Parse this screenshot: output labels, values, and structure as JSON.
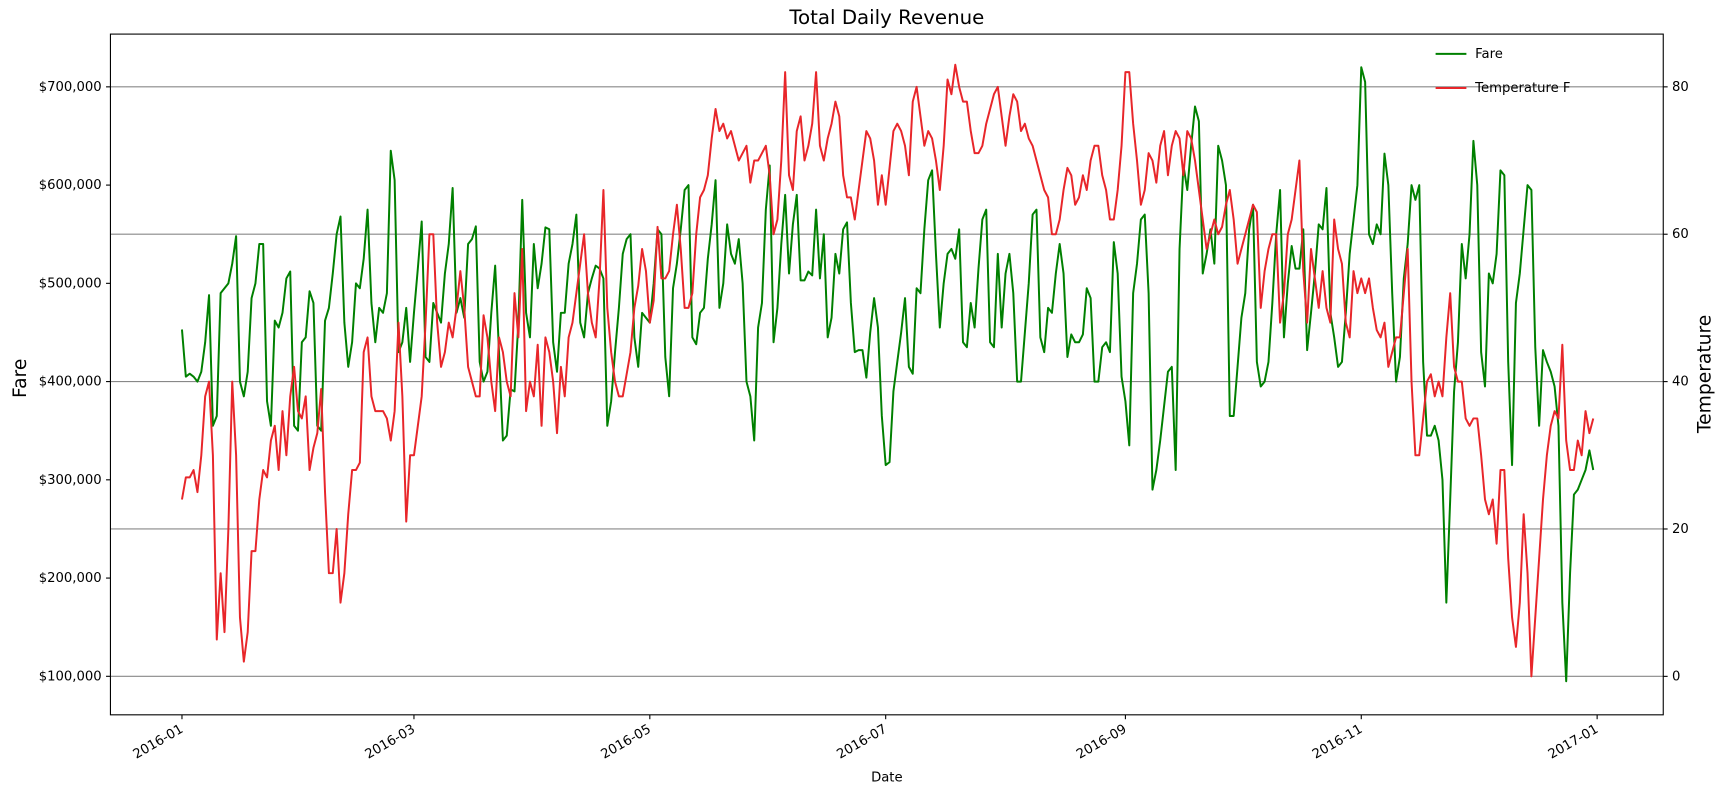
{
  "chart_data": {
    "type": "line",
    "title": "Total Daily Revenue",
    "xlabel": "Date",
    "ylabel": "Fare",
    "y2label": "Temperature",
    "xlim": [
      -18.5,
      383.1
    ],
    "xticks": [
      {
        "value": 0,
        "label": "2016-01"
      },
      {
        "value": 60,
        "label": "2016-03"
      },
      {
        "value": 121,
        "label": "2016-05"
      },
      {
        "value": 182,
        "label": "2016-07"
      },
      {
        "value": 244,
        "label": "2016-09"
      },
      {
        "value": 305,
        "label": "2016-11"
      },
      {
        "value": 366,
        "label": "2017-01"
      }
    ],
    "ylim": [
      60800,
      753700
    ],
    "yticks": [
      {
        "value": 100000,
        "label": "$100,000"
      },
      {
        "value": 200000,
        "label": "$200,000"
      },
      {
        "value": 300000,
        "label": "$300,000"
      },
      {
        "value": 400000,
        "label": "$400,000"
      },
      {
        "value": 500000,
        "label": "$500,000"
      },
      {
        "value": 600000,
        "label": "$600,000"
      },
      {
        "value": 700000,
        "label": "$700,000"
      }
    ],
    "y2lim": [
      -5.22,
      87.16
    ],
    "y2ticks": [
      0,
      20,
      40,
      60,
      80
    ],
    "grid": "y2",
    "legend": "upper right",
    "x": [
      0,
      1,
      2,
      3,
      4,
      5,
      6,
      7,
      8,
      9,
      10,
      11,
      12,
      13,
      14,
      15,
      16,
      17,
      18,
      19,
      20,
      21,
      22,
      23,
      24,
      25,
      26,
      27,
      28,
      29,
      30,
      31,
      32,
      33,
      34,
      35,
      36,
      37,
      38,
      39,
      40,
      41,
      42,
      43,
      44,
      45,
      46,
      47,
      48,
      49,
      50,
      51,
      52,
      53,
      54,
      55,
      56,
      57,
      58,
      59,
      60,
      61,
      62,
      63,
      64,
      65,
      66,
      67,
      68,
      69,
      70,
      71,
      72,
      73,
      74,
      75,
      76,
      77,
      78,
      79,
      80,
      81,
      82,
      83,
      84,
      85,
      86,
      87,
      88,
      89,
      90,
      91,
      92,
      93,
      94,
      95,
      96,
      97,
      98,
      99,
      100,
      101,
      102,
      103,
      104,
      105,
      106,
      107,
      108,
      109,
      110,
      111,
      112,
      113,
      114,
      115,
      116,
      117,
      118,
      119,
      120,
      121,
      122,
      123,
      124,
      125,
      126,
      127,
      128,
      129,
      130,
      131,
      132,
      133,
      134,
      135,
      136,
      137,
      138,
      139,
      140,
      141,
      142,
      143,
      144,
      145,
      146,
      147,
      148,
      149,
      150,
      151,
      152,
      153,
      154,
      155,
      156,
      157,
      158,
      159,
      160,
      161,
      162,
      163,
      164,
      165,
      166,
      167,
      168,
      169,
      170,
      171,
      172,
      173,
      174,
      175,
      176,
      177,
      178,
      179,
      180,
      181,
      182,
      183,
      184,
      185,
      186,
      187,
      188,
      189,
      190,
      191,
      192,
      193,
      194,
      195,
      196,
      197,
      198,
      199,
      200,
      201,
      202,
      203,
      204,
      205,
      206,
      207,
      208,
      209,
      210,
      211,
      212,
      213,
      214,
      215,
      216,
      217,
      218,
      219,
      220,
      221,
      222,
      223,
      224,
      225,
      226,
      227,
      228,
      229,
      230,
      231,
      232,
      233,
      234,
      235,
      236,
      237,
      238,
      239,
      240,
      241,
      242,
      243,
      244,
      245,
      246,
      247,
      248,
      249,
      250,
      251,
      252,
      253,
      254,
      255,
      256,
      257,
      258,
      259,
      260,
      261,
      262,
      263,
      264,
      265,
      266,
      267,
      268,
      269,
      270,
      271,
      272,
      273,
      274,
      275,
      276,
      277,
      278,
      279,
      280,
      281,
      282,
      283,
      284,
      285,
      286,
      287,
      288,
      289,
      290,
      291,
      292,
      293,
      294,
      295,
      296,
      297,
      298,
      299,
      300,
      301,
      302,
      303,
      304,
      305,
      306,
      307,
      308,
      309,
      310,
      311,
      312,
      313,
      314,
      315,
      316,
      317,
      318,
      319,
      320,
      321,
      322,
      323,
      324,
      325,
      326,
      327,
      328,
      329,
      330,
      331,
      332,
      333,
      334,
      335,
      336,
      337,
      338,
      339,
      340,
      341,
      342,
      343,
      344,
      345,
      346,
      347,
      348,
      349,
      350,
      351,
      352,
      353,
      354,
      355,
      356,
      357,
      358,
      359,
      360,
      361,
      362,
      363,
      364,
      365
    ],
    "series": [
      {
        "name": "Fare",
        "color": "#008000",
        "axis": "y",
        "values": [
          453000,
          405000,
          408000,
          405000,
          400000,
          410000,
          440000,
          488000,
          355000,
          365000,
          490000,
          495000,
          500000,
          520000,
          548000,
          400000,
          385000,
          410000,
          485000,
          500000,
          540000,
          540000,
          380000,
          355000,
          462000,
          455000,
          470000,
          505000,
          512000,
          355000,
          350000,
          440000,
          445000,
          492000,
          480000,
          355000,
          350000,
          462000,
          475000,
          510000,
          550000,
          568000,
          460000,
          415000,
          440000,
          500000,
          495000,
          525000,
          575000,
          480000,
          440000,
          475000,
          470000,
          490000,
          635000,
          605000,
          430000,
          440000,
          475000,
          420000,
          470000,
          515000,
          563000,
          425000,
          420000,
          480000,
          470000,
          460000,
          510000,
          540000,
          597000,
          470000,
          485000,
          465000,
          540000,
          545000,
          558000,
          420000,
          400000,
          410000,
          470000,
          518000,
          430000,
          340000,
          345000,
          392000,
          390000,
          460000,
          585000,
          470000,
          445000,
          540000,
          495000,
          520000,
          557000,
          555000,
          440000,
          410000,
          470000,
          470000,
          520000,
          540000,
          570000,
          460000,
          445000,
          490000,
          505000,
          518000,
          515000,
          505000,
          355000,
          380000,
          430000,
          475000,
          530000,
          545000,
          550000,
          445000,
          415000,
          470000,
          465000,
          460000,
          500000,
          555000,
          550000,
          425000,
          385000,
          495000,
          520000,
          555000,
          595000,
          600000,
          445000,
          438000,
          470000,
          475000,
          525000,
          560000,
          605000,
          475000,
          500000,
          560000,
          530000,
          520000,
          545000,
          500000,
          400000,
          385000,
          340000,
          455000,
          480000,
          575000,
          620000,
          440000,
          475000,
          540000,
          590000,
          510000,
          560000,
          590000,
          503000,
          503000,
          512000,
          508000,
          575000,
          505000,
          550000,
          445000,
          465000,
          530000,
          510000,
          555000,
          562000,
          480000,
          430000,
          432000,
          432000,
          404000,
          450000,
          485000,
          455000,
          365000,
          315000,
          318000,
          390000,
          420000,
          450000,
          485000,
          415000,
          408000,
          495000,
          490000,
          555000,
          605000,
          615000,
          530000,
          455000,
          500000,
          530000,
          535000,
          525000,
          555000,
          440000,
          435000,
          480000,
          455000,
          515000,
          565000,
          575000,
          440000,
          435000,
          530000,
          455000,
          510000,
          530000,
          490000,
          400000,
          400000,
          450000,
          500000,
          570000,
          575000,
          445000,
          430000,
          475000,
          470000,
          510000,
          540000,
          510000,
          425000,
          448000,
          440000,
          440000,
          448000,
          495000,
          485000,
          400000,
          400000,
          435000,
          440000,
          430000,
          542000,
          510000,
          405000,
          380000,
          335000,
          490000,
          520000,
          565000,
          570000,
          490000,
          290000,
          310000,
          340000,
          375000,
          410000,
          415000,
          310000,
          535000,
          620000,
          595000,
          640000,
          680000,
          665000,
          510000,
          530000,
          555000,
          520000,
          640000,
          625000,
          600000,
          365000,
          365000,
          415000,
          465000,
          490000,
          555000,
          580000,
          420000,
          395000,
          400000,
          420000,
          480000,
          550000,
          595000,
          445000,
          500000,
          538000,
          515000,
          515000,
          555000,
          432000,
          470000,
          510000,
          560000,
          555000,
          597000,
          470000,
          445000,
          415000,
          420000,
          470000,
          530000,
          565000,
          600000,
          720000,
          705000,
          550000,
          540000,
          560000,
          550000,
          632000,
          600000,
          490000,
          400000,
          425000,
          505000,
          540000,
          600000,
          585000,
          600000,
          420000,
          345000,
          345000,
          355000,
          340000,
          300000,
          175000,
          280000,
          390000,
          440000,
          540000,
          505000,
          550000,
          645000,
          600000,
          430000,
          395000,
          510000,
          500000,
          530000,
          615000,
          610000,
          420000,
          315000,
          480000,
          510000,
          555000,
          600000,
          595000,
          435000,
          355000,
          432000,
          420000,
          410000,
          395000,
          355000,
          175000,
          95000,
          205000,
          285000,
          290000,
          300000,
          310000,
          330000,
          310000
        ]
      },
      {
        "name": "Temperature F",
        "color": "#e8262a",
        "axis": "y2",
        "values": [
          24,
          27,
          27,
          28,
          25,
          30,
          38,
          40,
          30,
          5,
          14,
          6,
          20,
          40,
          30,
          8,
          2,
          6,
          17,
          17,
          24,
          28,
          27,
          32,
          34,
          28,
          36,
          30,
          38,
          42,
          36,
          35,
          38,
          28,
          31,
          33,
          39,
          25,
          14,
          14,
          20,
          10,
          14,
          22,
          28,
          28,
          29,
          44,
          46,
          38,
          36,
          36,
          36,
          35,
          32,
          36,
          48,
          38,
          21,
          30,
          30,
          34,
          38,
          48,
          60,
          60,
          48,
          42,
          44,
          48,
          46,
          50,
          55,
          50,
          42,
          40,
          38,
          38,
          49,
          46,
          40,
          36,
          46,
          44,
          40,
          38,
          52,
          46,
          58,
          36,
          40,
          38,
          45,
          34,
          46,
          44,
          40,
          33,
          42,
          38,
          46,
          48,
          52,
          56,
          60,
          52,
          48,
          46,
          54,
          66,
          50,
          44,
          40,
          38,
          38,
          41,
          44,
          50,
          53,
          58,
          55,
          48,
          51,
          61,
          54,
          54,
          55,
          60,
          64,
          58,
          50,
          50,
          52,
          60,
          65,
          66,
          68,
          73,
          77,
          74,
          75,
          73,
          74,
          72,
          70,
          71,
          72,
          67,
          70,
          70,
          71,
          72,
          68,
          60,
          62,
          70,
          82,
          68,
          66,
          74,
          76,
          70,
          72,
          75,
          82,
          72,
          70,
          73,
          75,
          78,
          76,
          68,
          65,
          65,
          62,
          66,
          70,
          74,
          73,
          70,
          64,
          68,
          64,
          69,
          74,
          75,
          74,
          72,
          68,
          78,
          80,
          76,
          72,
          74,
          73,
          70,
          66,
          72,
          81,
          79,
          83,
          80,
          78,
          78,
          74,
          71,
          71,
          72,
          75,
          77,
          79,
          80,
          76,
          72,
          76,
          79,
          78,
          74,
          75,
          73,
          72,
          70,
          68,
          66,
          65,
          60,
          60,
          62,
          66,
          69,
          68,
          64,
          65,
          68,
          66,
          70,
          72,
          72,
          68,
          66,
          62,
          62,
          66,
          72,
          82,
          82,
          75,
          70,
          64,
          66,
          71,
          70,
          67,
          72,
          74,
          68,
          72,
          74,
          73,
          68,
          74,
          73,
          70,
          66,
          62,
          58,
          60,
          62,
          60,
          61,
          64,
          66,
          62,
          56,
          58,
          60,
          62,
          64,
          63,
          50,
          55,
          58,
          60,
          60,
          48,
          52,
          60,
          62,
          66,
          70,
          55,
          48,
          58,
          54,
          50,
          55,
          50,
          48,
          62,
          58,
          56,
          48,
          46,
          55,
          52,
          54,
          52,
          54,
          50,
          47,
          46,
          48,
          42,
          44,
          46,
          46,
          52,
          58,
          40,
          30,
          30,
          35,
          40,
          41,
          38,
          40,
          38,
          46,
          52,
          42,
          40,
          40,
          35,
          34,
          35,
          35,
          30,
          24,
          22,
          24,
          18,
          28,
          28,
          16,
          8,
          4,
          10,
          22,
          14,
          0,
          8,
          16,
          24,
          30,
          34,
          36,
          35,
          45,
          32,
          28,
          28,
          32,
          30,
          36,
          33,
          35
        ]
      }
    ]
  }
}
